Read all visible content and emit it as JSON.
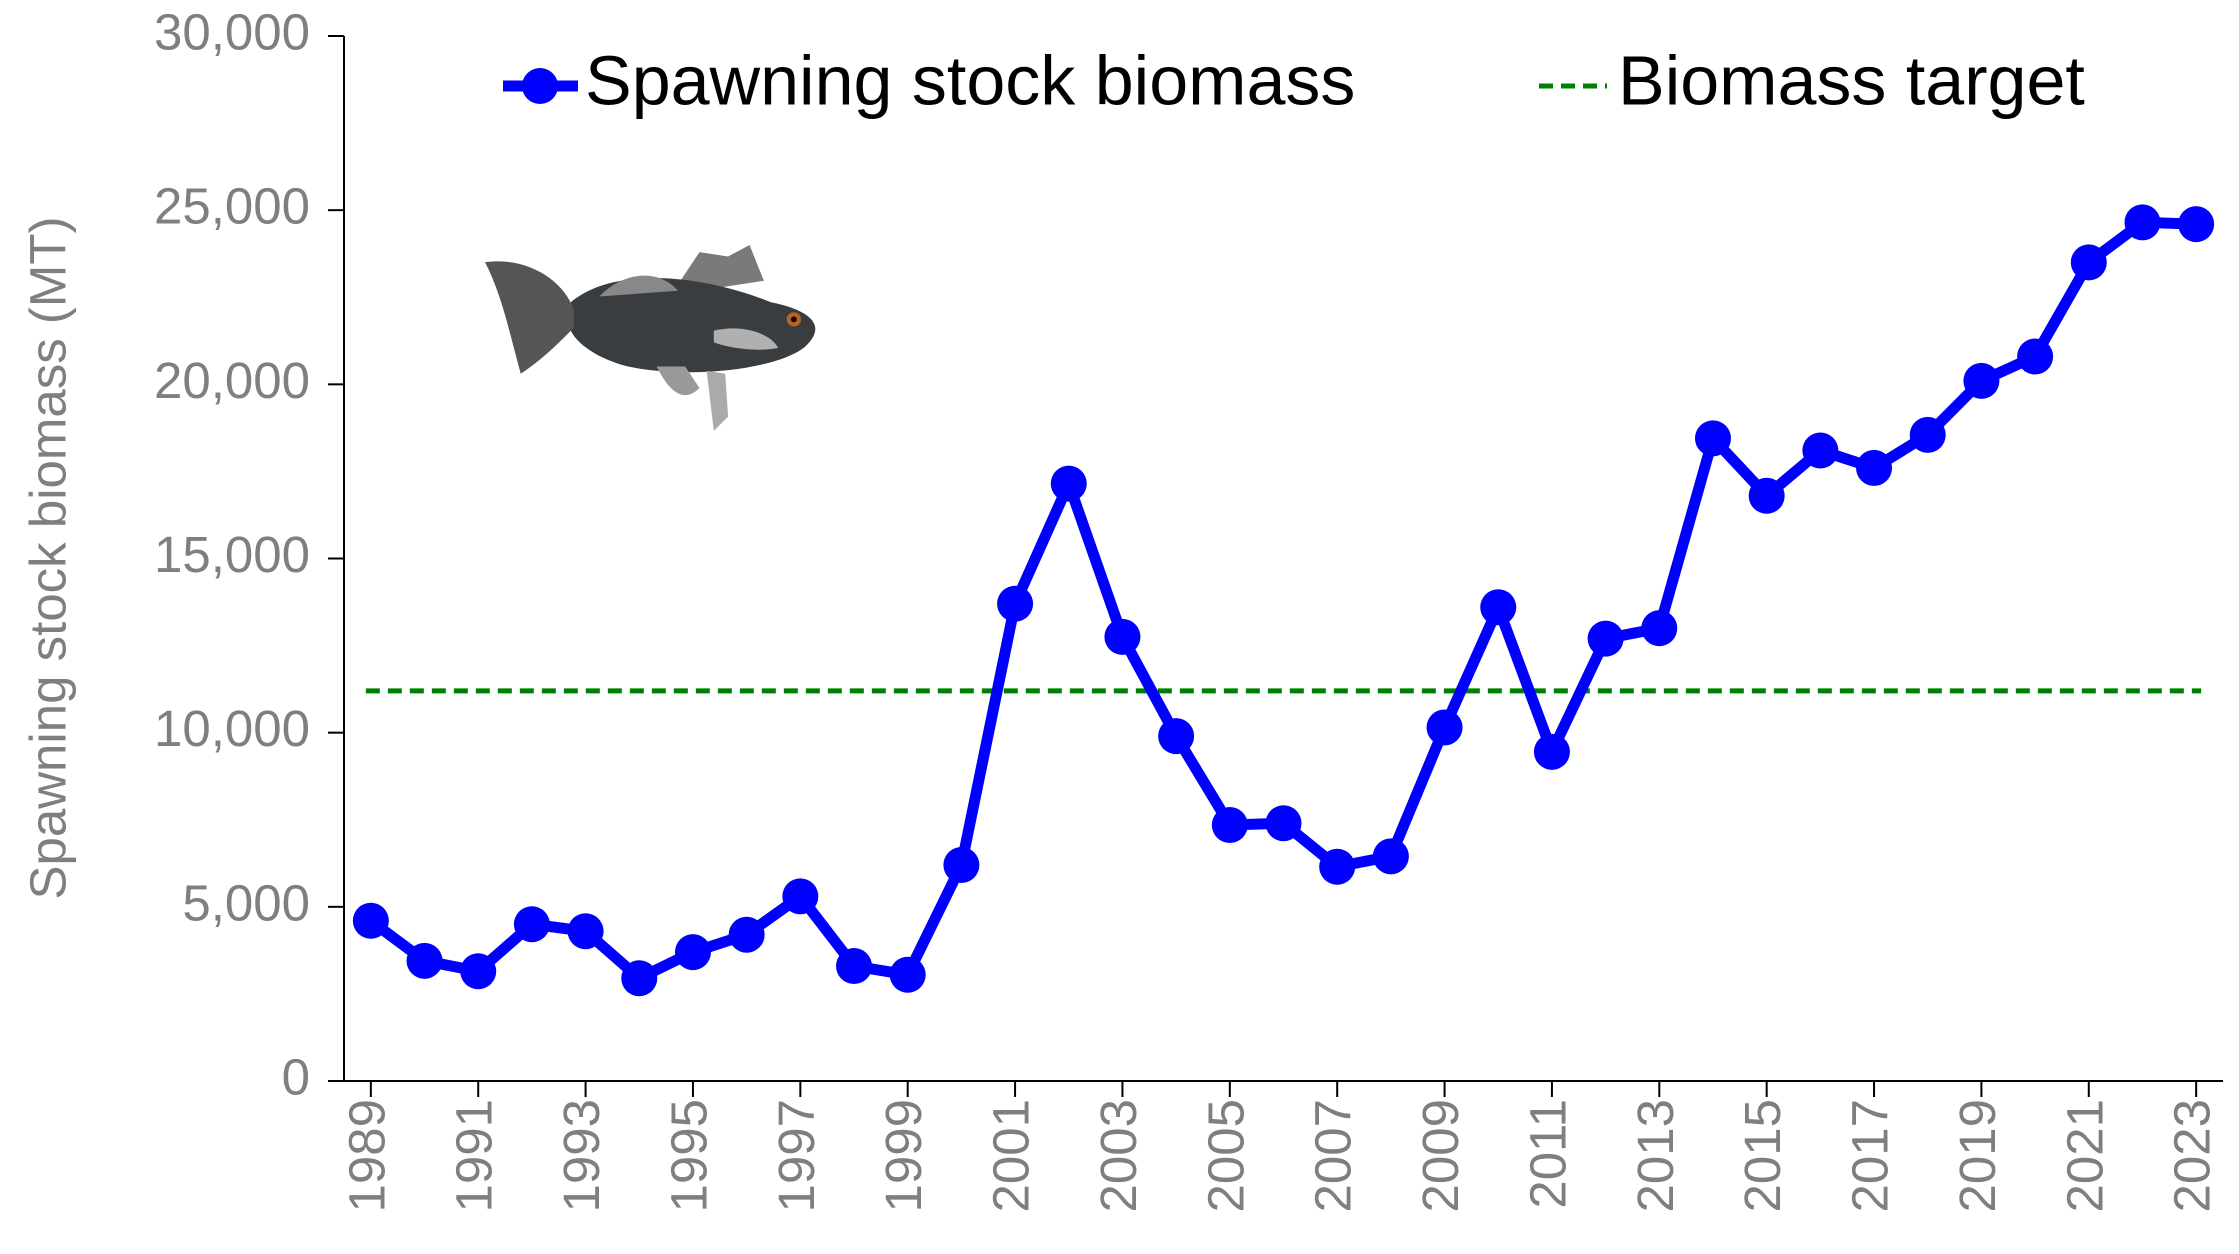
{
  "chart_data": {
    "type": "line",
    "y_label": "Spawning stock biomass (MT)",
    "x": [
      1989,
      1990,
      1991,
      1992,
      1993,
      1994,
      1995,
      1996,
      1997,
      1998,
      1999,
      2000,
      2001,
      2002,
      2003,
      2004,
      2005,
      2006,
      2007,
      2008,
      2009,
      2010,
      2011,
      2012,
      2013,
      2014,
      2015,
      2016,
      2017,
      2018,
      2019,
      2020,
      2021,
      2022,
      2023
    ],
    "xlim": [
      1988.5,
      2023.5
    ],
    "xticks": [
      1989,
      1991,
      1993,
      1995,
      1997,
      1999,
      2001,
      2003,
      2005,
      2007,
      2009,
      2011,
      2013,
      2015,
      2017,
      2019,
      2021,
      2023
    ],
    "ylim": [
      0,
      30000
    ],
    "yticks": [
      0,
      {
        "value": 5000,
        "label": "5,000"
      },
      {
        "value": 10000,
        "label": "10,000"
      },
      {
        "value": 15000,
        "label": "15,000"
      },
      {
        "value": 20000,
        "label": "20,000"
      },
      {
        "value": 25000,
        "label": "25,000"
      },
      {
        "value": 30000,
        "label": "30,000"
      }
    ],
    "series": [
      {
        "name": "Spawning stock biomass",
        "color": "#0000ff",
        "values": [
          4600,
          3450,
          3150,
          4500,
          4300,
          2950,
          3700,
          4200,
          5300,
          3300,
          3050,
          6200,
          13700,
          17150,
          12750,
          9900,
          7350,
          7400,
          6150,
          6450,
          10150,
          13600,
          9450,
          12700,
          13000,
          18450,
          16800,
          18100,
          17600,
          18550,
          20100,
          20800,
          23500,
          24650,
          24600
        ]
      }
    ],
    "hlines": [
      {
        "name": "Biomass target",
        "color": "#008000",
        "value": 11200,
        "style": "dashed"
      }
    ]
  }
}
